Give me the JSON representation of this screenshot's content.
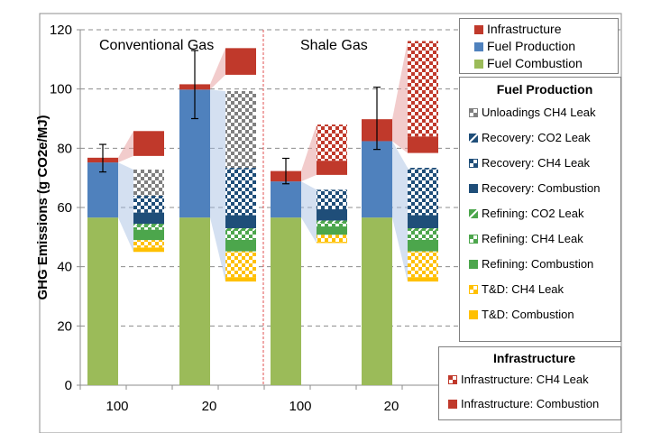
{
  "chart_data": {
    "type": "bar",
    "subtype": "stacked-bar-with-breakdown",
    "title": "",
    "ylabel": "GHG Emissions (g CO2e/MJ)",
    "xlabel": "",
    "ylim": [
      0,
      120
    ],
    "yticks": [
      0,
      20,
      40,
      60,
      80,
      100,
      120
    ],
    "grid": true,
    "groups": [
      {
        "name": "Conventional Gas",
        "categories": [
          "100",
          "20"
        ]
      },
      {
        "name": "Shale Gas",
        "categories": [
          "100",
          "20"
        ]
      }
    ],
    "categories": [
      "100",
      "20",
      "100",
      "20"
    ],
    "series": [
      {
        "name": "Fuel Combustion",
        "color": "#9BBB59",
        "values": [
          56.6,
          56.6,
          56.6,
          56.6
        ]
      },
      {
        "name": "Fuel Production",
        "color": "#4F81BD",
        "values": [
          18.6,
          43.2,
          12.2,
          25.8
        ]
      },
      {
        "name": "Infrastructure",
        "color": "#C0392B",
        "values": [
          1.6,
          1.8,
          3.5,
          7.4
        ]
      }
    ],
    "error_bars": [
      {
        "category": "Conventional Gas 100",
        "low": 72.0,
        "high": 81.3
      },
      {
        "category": "Conventional Gas 20",
        "low": 90.0,
        "high": 113.0
      },
      {
        "category": "Shale Gas 100",
        "low": 68.0,
        "high": 76.6
      },
      {
        "category": "Shale Gas 20",
        "low": 79.6,
        "high": 100.6
      }
    ],
    "breakdown": {
      "fuel_production": {
        "base": [
          45.0,
          35.0,
          48.0,
          35.0
        ],
        "series": [
          {
            "name": "T&D: Combustion",
            "color": "#FFC000",
            "pattern": "solid",
            "values": [
              1.5,
              1.5,
              0.4,
              1.5
            ]
          },
          {
            "name": "T&D: CH4 Leak",
            "color": "#FFC000",
            "pattern": "checker",
            "values": [
              2.5,
              8.7,
              2.4,
              8.7
            ]
          },
          {
            "name": "Refining: Combustion",
            "color": "#4CA64C",
            "pattern": "solid",
            "values": [
              3.5,
              3.9,
              2.8,
              3.9
            ]
          },
          {
            "name": "Refining: CH4 Leak",
            "color": "#4CA64C",
            "pattern": "checker",
            "values": [
              1.2,
              3.0,
              1.2,
              3.0
            ]
          },
          {
            "name": "Refining: CO2 Leak",
            "color": "#4CA64C",
            "pattern": "diagonal",
            "values": [
              0.8,
              0.9,
              0.8,
              0.9
            ]
          },
          {
            "name": "Recovery: Combustion",
            "color": "#1F4E79",
            "pattern": "solid",
            "values": [
              3.8,
              4.4,
              3.8,
              4.4
            ]
          },
          {
            "name": "Recovery: CH4 Leak",
            "color": "#1F4E79",
            "pattern": "checker",
            "values": [
              5.2,
              15.5,
              6.4,
              15.5
            ]
          },
          {
            "name": "Recovery: CO2 Leak",
            "color": "#1F4E79",
            "pattern": "diagonal",
            "values": [
              0.5,
              0.5,
              0.2,
              0.5
            ]
          },
          {
            "name": "Unloadings CH4 Leak",
            "color": "#808080",
            "pattern": "checker",
            "values": [
              8.8,
              25.9,
              0.0,
              0.0
            ]
          }
        ]
      },
      "infrastructure": {
        "base": [
          77.4,
          104.8,
          71.0,
          78.4
        ],
        "series": [
          {
            "name": "Infrastructure: Combustion",
            "color": "#C0392B",
            "pattern": "solid",
            "values": [
              8.4,
              9.0,
              4.8,
              5.6
            ]
          },
          {
            "name": "Infrastructure: CH4 Leak",
            "color": "#C0392B",
            "pattern": "checker",
            "values": [
              0.0,
              0.0,
              12.2,
              32.2
            ]
          }
        ]
      }
    },
    "annotations": [
      "Conventional Gas",
      "Shale Gas"
    ]
  },
  "legend_main": {
    "items": [
      {
        "label": "Infrastructure",
        "color": "#C0392B"
      },
      {
        "label": "Fuel Production",
        "color": "#4F81BD"
      },
      {
        "label": "Fuel Combustion",
        "color": "#9BBB59"
      }
    ]
  },
  "legend_fuel_production": {
    "title": "Fuel Production",
    "items": [
      {
        "label": "Unloadings CH4 Leak",
        "color": "#808080",
        "pattern": "checker"
      },
      {
        "label": "Recovery: CO2 Leak",
        "color": "#1F4E79",
        "pattern": "diagonal"
      },
      {
        "label": "Recovery: CH4 Leak",
        "color": "#1F4E79",
        "pattern": "checker"
      },
      {
        "label": "Recovery: Combustion",
        "color": "#1F4E79",
        "pattern": "solid"
      },
      {
        "label": "Refining: CO2 Leak",
        "color": "#4CA64C",
        "pattern": "diagonal"
      },
      {
        "label": "Refining: CH4 Leak",
        "color": "#4CA64C",
        "pattern": "checker"
      },
      {
        "label": "Refining: Combustion",
        "color": "#4CA64C",
        "pattern": "solid"
      },
      {
        "label": "T&D: CH4 Leak",
        "color": "#FFC000",
        "pattern": "checker"
      },
      {
        "label": "T&D: Combustion",
        "color": "#FFC000",
        "pattern": "solid"
      }
    ]
  },
  "legend_infrastructure": {
    "title": "Infrastructure",
    "items": [
      {
        "label": "Infrastructure: CH4 Leak",
        "color": "#C0392B",
        "pattern": "checker"
      },
      {
        "label": "Infrastructure: Combustion",
        "color": "#C0392B",
        "pattern": "solid"
      }
    ]
  }
}
